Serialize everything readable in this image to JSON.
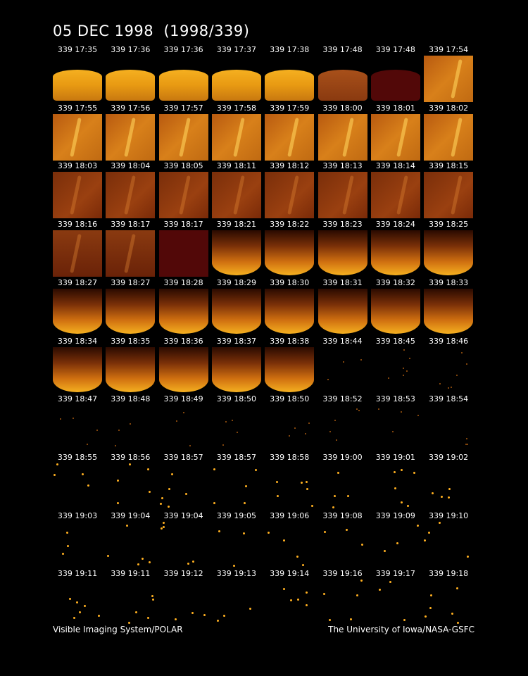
{
  "title": "05 DEC 1998  (1998/339)",
  "frames": [
    [
      "339 17:35",
      "339 17:36",
      "339 17:36",
      "339 17:37",
      "339 17:38",
      "339 17:48",
      "339 17:48",
      "339 17:54"
    ],
    [
      "339 17:55",
      "339 17:56",
      "339 17:57",
      "339 17:58",
      "339 17:59",
      "339 18:00",
      "339 18:01",
      "339 18:02"
    ],
    [
      "339 18:03",
      "339 18:04",
      "339 18:05",
      "339 18:11",
      "339 18:12",
      "339 18:13",
      "339 18:14",
      "339 18:15"
    ],
    [
      "339 18:16",
      "339 18:17",
      "339 18:17",
      "339 18:21",
      "339 18:22",
      "339 18:23",
      "339 18:24",
      "339 18:25"
    ],
    [
      "339 18:27",
      "339 18:27",
      "339 18:28",
      "339 18:29",
      "339 18:30",
      "339 18:31",
      "339 18:32",
      "339 18:33"
    ],
    [
      "339 18:34",
      "339 18:35",
      "339 18:36",
      "339 18:37",
      "339 18:38",
      "339 18:44",
      "339 18:45",
      "339 18:46"
    ],
    [
      "339 18:47",
      "339 18:48",
      "339 18:49",
      "339 18:50",
      "339 18:50",
      "339 18:52",
      "339 18:53",
      "339 18:54"
    ],
    [
      "339 18:55",
      "339 18:56",
      "339 18:57",
      "339 18:57",
      "339 18:58",
      "339 19:00",
      "339 19:01",
      "339 19:02"
    ],
    [
      "339 19:03",
      "339 19:04",
      "339 19:04",
      "339 19:05",
      "339 19:06",
      "339 19:08",
      "339 19:09",
      "339 19:10"
    ],
    [
      "339 19:11",
      "339 19:11",
      "339 19:12",
      "339 19:13",
      "339 19:14",
      "339 19:16",
      "339 19:17",
      "339 19:18"
    ]
  ],
  "footer": {
    "left": "Visible Imaging System/POLAR",
    "right": "The University of Iowa/NASA-GSFC"
  }
}
